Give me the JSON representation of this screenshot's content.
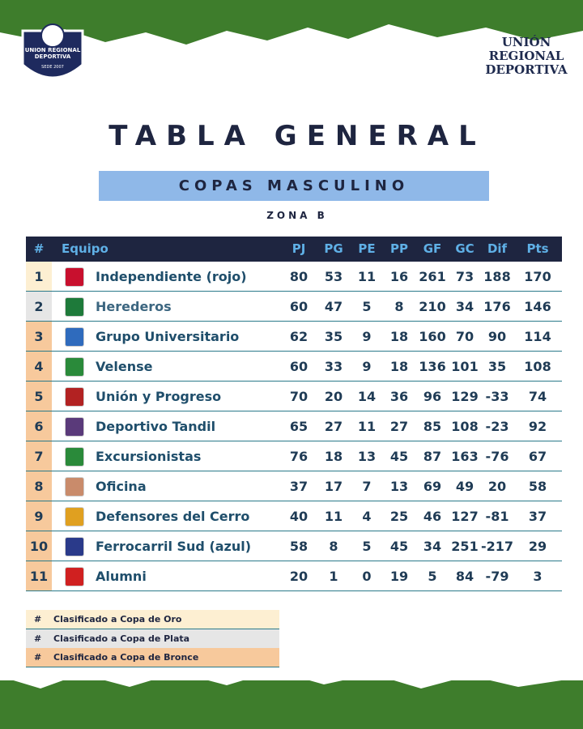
{
  "header": {
    "logo_name": "UNION REGIONAL DEPORTIVA",
    "logo_since": "SEDE 2007",
    "brand": "UNIÓN REGIONAL DEPORTIVA"
  },
  "title": "TABLA GENERAL",
  "subtitle": "COPAS MASCULINO",
  "zone": "ZONA B",
  "table": {
    "columns": [
      "#",
      "Equipo",
      "PJ",
      "PG",
      "PE",
      "PP",
      "GF",
      "GC",
      "Dif",
      "Pts"
    ],
    "rows": [
      [
        1,
        "Independiente (rojo)",
        80,
        53,
        11,
        16,
        261,
        73,
        188,
        170
      ],
      [
        2,
        "Herederos",
        60,
        47,
        5,
        8,
        210,
        34,
        176,
        146
      ],
      [
        3,
        "Grupo Universitario",
        62,
        35,
        9,
        18,
        160,
        70,
        90,
        114
      ],
      [
        4,
        "Velense",
        60,
        33,
        9,
        18,
        136,
        101,
        35,
        108
      ],
      [
        5,
        "Unión y Progreso",
        70,
        20,
        14,
        36,
        96,
        129,
        -33,
        74
      ],
      [
        6,
        "Deportivo Tandil",
        65,
        27,
        11,
        27,
        85,
        108,
        -23,
        92
      ],
      [
        7,
        "Excursionistas",
        76,
        18,
        13,
        45,
        87,
        163,
        -76,
        67
      ],
      [
        8,
        "Oficina",
        37,
        17,
        7,
        13,
        69,
        49,
        20,
        58
      ],
      [
        9,
        "Defensores del Cerro",
        40,
        11,
        4,
        25,
        46,
        127,
        -81,
        37
      ],
      [
        10,
        "Ferrocarril Sud (azul)",
        58,
        8,
        5,
        45,
        34,
        251,
        -217,
        29
      ],
      [
        11,
        "Alumni",
        20,
        1,
        0,
        19,
        5,
        84,
        -79,
        3
      ]
    ]
  },
  "legend": [
    {
      "symbol": "#",
      "label": "Clasificado a Copa de Oro",
      "color": "#fdefd2"
    },
    {
      "symbol": "#",
      "label": "Clasificado a Copa de Plata",
      "color": "#e6e6e6"
    },
    {
      "symbol": "#",
      "label": "Clasificado a Copa de Bronce",
      "color": "#f7c99c"
    }
  ]
}
